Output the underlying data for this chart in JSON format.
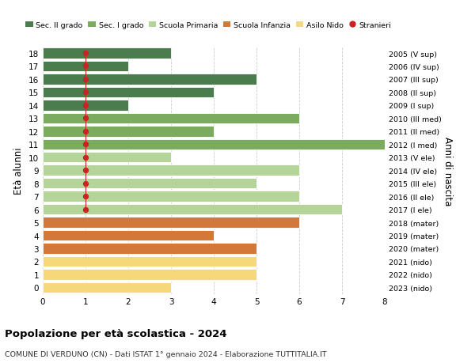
{
  "ages": [
    18,
    17,
    16,
    15,
    14,
    13,
    12,
    11,
    10,
    9,
    8,
    7,
    6,
    5,
    4,
    3,
    2,
    1,
    0
  ],
  "year_labels": [
    "2005 (V sup)",
    "2006 (IV sup)",
    "2007 (III sup)",
    "2008 (II sup)",
    "2009 (I sup)",
    "2010 (III med)",
    "2011 (II med)",
    "2012 (I med)",
    "2013 (V ele)",
    "2014 (IV ele)",
    "2015 (III ele)",
    "2016 (II ele)",
    "2017 (I ele)",
    "2018 (mater)",
    "2019 (mater)",
    "2020 (mater)",
    "2021 (nido)",
    "2022 (nido)",
    "2023 (nido)"
  ],
  "bar_values": [
    3,
    2,
    5,
    4,
    2,
    6,
    4,
    8,
    3,
    6,
    5,
    6,
    7,
    6,
    4,
    5,
    5,
    5,
    3
  ],
  "bar_colors": [
    "#4a7c4e",
    "#4a7c4e",
    "#4a7c4e",
    "#4a7c4e",
    "#4a7c4e",
    "#7aab5e",
    "#7aab5e",
    "#7aab5e",
    "#b5d49a",
    "#b5d49a",
    "#b5d49a",
    "#b5d49a",
    "#b5d49a",
    "#d4783a",
    "#d4783a",
    "#d4783a",
    "#f5d87a",
    "#f5d87a",
    "#f5d87a"
  ],
  "stranieri_ages": [
    18,
    17,
    16,
    15,
    14,
    13,
    12,
    11,
    10,
    9,
    8,
    7,
    6
  ],
  "stranieri_x": 1,
  "legend_labels": [
    "Sec. II grado",
    "Sec. I grado",
    "Scuola Primaria",
    "Scuola Infanzia",
    "Asilo Nido",
    "Stranieri"
  ],
  "legend_colors": [
    "#4a7c4e",
    "#7aab5e",
    "#b5d49a",
    "#d4783a",
    "#f5d87a",
    "#cc2222"
  ],
  "ylabel": "Età alunni",
  "ylabel_right": "Anni di nascita",
  "title": "Popolazione per età scolastica - 2024",
  "subtitle": "COMUNE DI VERDUNO (CN) - Dati ISTAT 1° gennaio 2024 - Elaborazione TUTTITALIA.IT",
  "xlim": [
    0,
    8
  ],
  "ylim": [
    -0.5,
    18.5
  ],
  "background_color": "#ffffff",
  "grid_color": "#cccccc"
}
